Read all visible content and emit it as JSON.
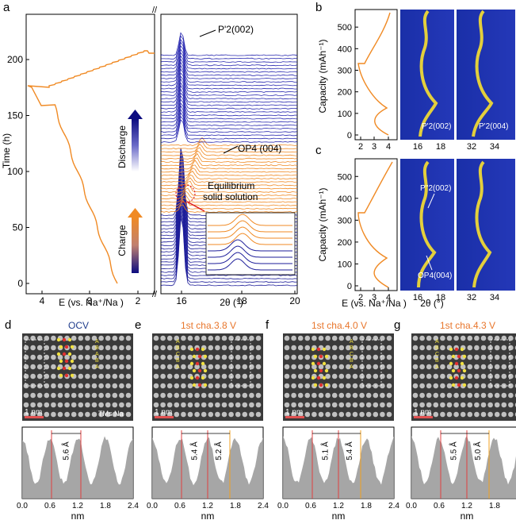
{
  "panel_labels": {
    "a": "a",
    "b": "b",
    "c": "c",
    "d": "d",
    "e": "e",
    "f": "f",
    "g": "g"
  },
  "panel_a": {
    "ylabel": "Time (h)",
    "xlabel_left": "E (vs. Na⁺/Na )",
    "xlabel_right": "2θ (°)",
    "axis_break": "//",
    "y_ticks": [
      "0",
      "50",
      "100",
      "150",
      "200"
    ],
    "x_ticks_left": [
      "4",
      "3",
      "2"
    ],
    "x_ticks_right": [
      "16",
      "18",
      "20"
    ],
    "annotations": {
      "p2": "P'2(002)",
      "op4": "OP4 (004)",
      "equilibrium_line1": "Equilibrium",
      "equilibrium_line2": "solid solution",
      "discharge": "Discharge",
      "charge": "Charge"
    },
    "colors": {
      "discharge": "#1a1a8c",
      "charge": "#f08a24",
      "bg_blue": "#2a2ab0"
    }
  },
  "panel_b": {
    "ylabel": "Capacity (mAh⁻¹)",
    "y_ticks": [
      "0",
      "100",
      "200",
      "300",
      "400",
      "500"
    ],
    "x_ticks_voltage": [
      "2",
      "3",
      "4"
    ],
    "x_ticks_mid": [
      "16",
      "18"
    ],
    "x_ticks_right": [
      "32",
      "34"
    ],
    "label_mid": "P'2(002)",
    "label_right": "P'2(004)"
  },
  "panel_c": {
    "ylabel": "Capacity (mAh⁻¹)",
    "y_ticks": [
      "0",
      "100",
      "200",
      "300",
      "400",
      "500"
    ],
    "x_ticks_voltage": [
      "2",
      "3",
      "4"
    ],
    "x_ticks_mid": [
      "16",
      "18"
    ],
    "x_ticks_right": [
      "32",
      "34"
    ],
    "label_p2": "P''2(002)",
    "label_op4": "OP4(004)",
    "xlabel_voltage": "E (vs. Na⁺/Na )",
    "xlabel_angle": "2θ (°)"
  },
  "tem_panels": [
    {
      "id": "d",
      "title": "OCV",
      "title_color": "#1f3c8c",
      "scale": "1 nm",
      "stack": [
        "A",
        "B",
        "A",
        "B",
        "A"
      ],
      "legend": "TMs Na",
      "spacings": [
        "5.6 Å"
      ]
    },
    {
      "id": "e",
      "title": "1st cha.3.8 V",
      "title_color": "#e8762c",
      "scale": "1 nm",
      "stack": [
        "A",
        "B",
        "C",
        "B",
        "A"
      ],
      "spacings": [
        "5.4 Å",
        "5.2 Å"
      ]
    },
    {
      "id": "f",
      "title": "1st cha.4.0 V",
      "title_color": "#e8762c",
      "scale": "1 nm",
      "stack": [
        "A",
        "B",
        "C",
        "B",
        "A"
      ],
      "spacings": [
        "5.1 Å",
        "5.4 Å"
      ]
    },
    {
      "id": "g",
      "title": "1st cha.4.3 V",
      "title_color": "#e8762c",
      "scale": "1 nm",
      "stack": [
        "A",
        "B",
        "C",
        "B",
        "A"
      ],
      "spacings": [
        "5.5 Å",
        "5.0 Å"
      ]
    }
  ],
  "profiles": {
    "xlabel": "nm",
    "x_ticks": [
      "0.0",
      "0.6",
      "1.2",
      "1.8",
      "2.4"
    ]
  }
}
